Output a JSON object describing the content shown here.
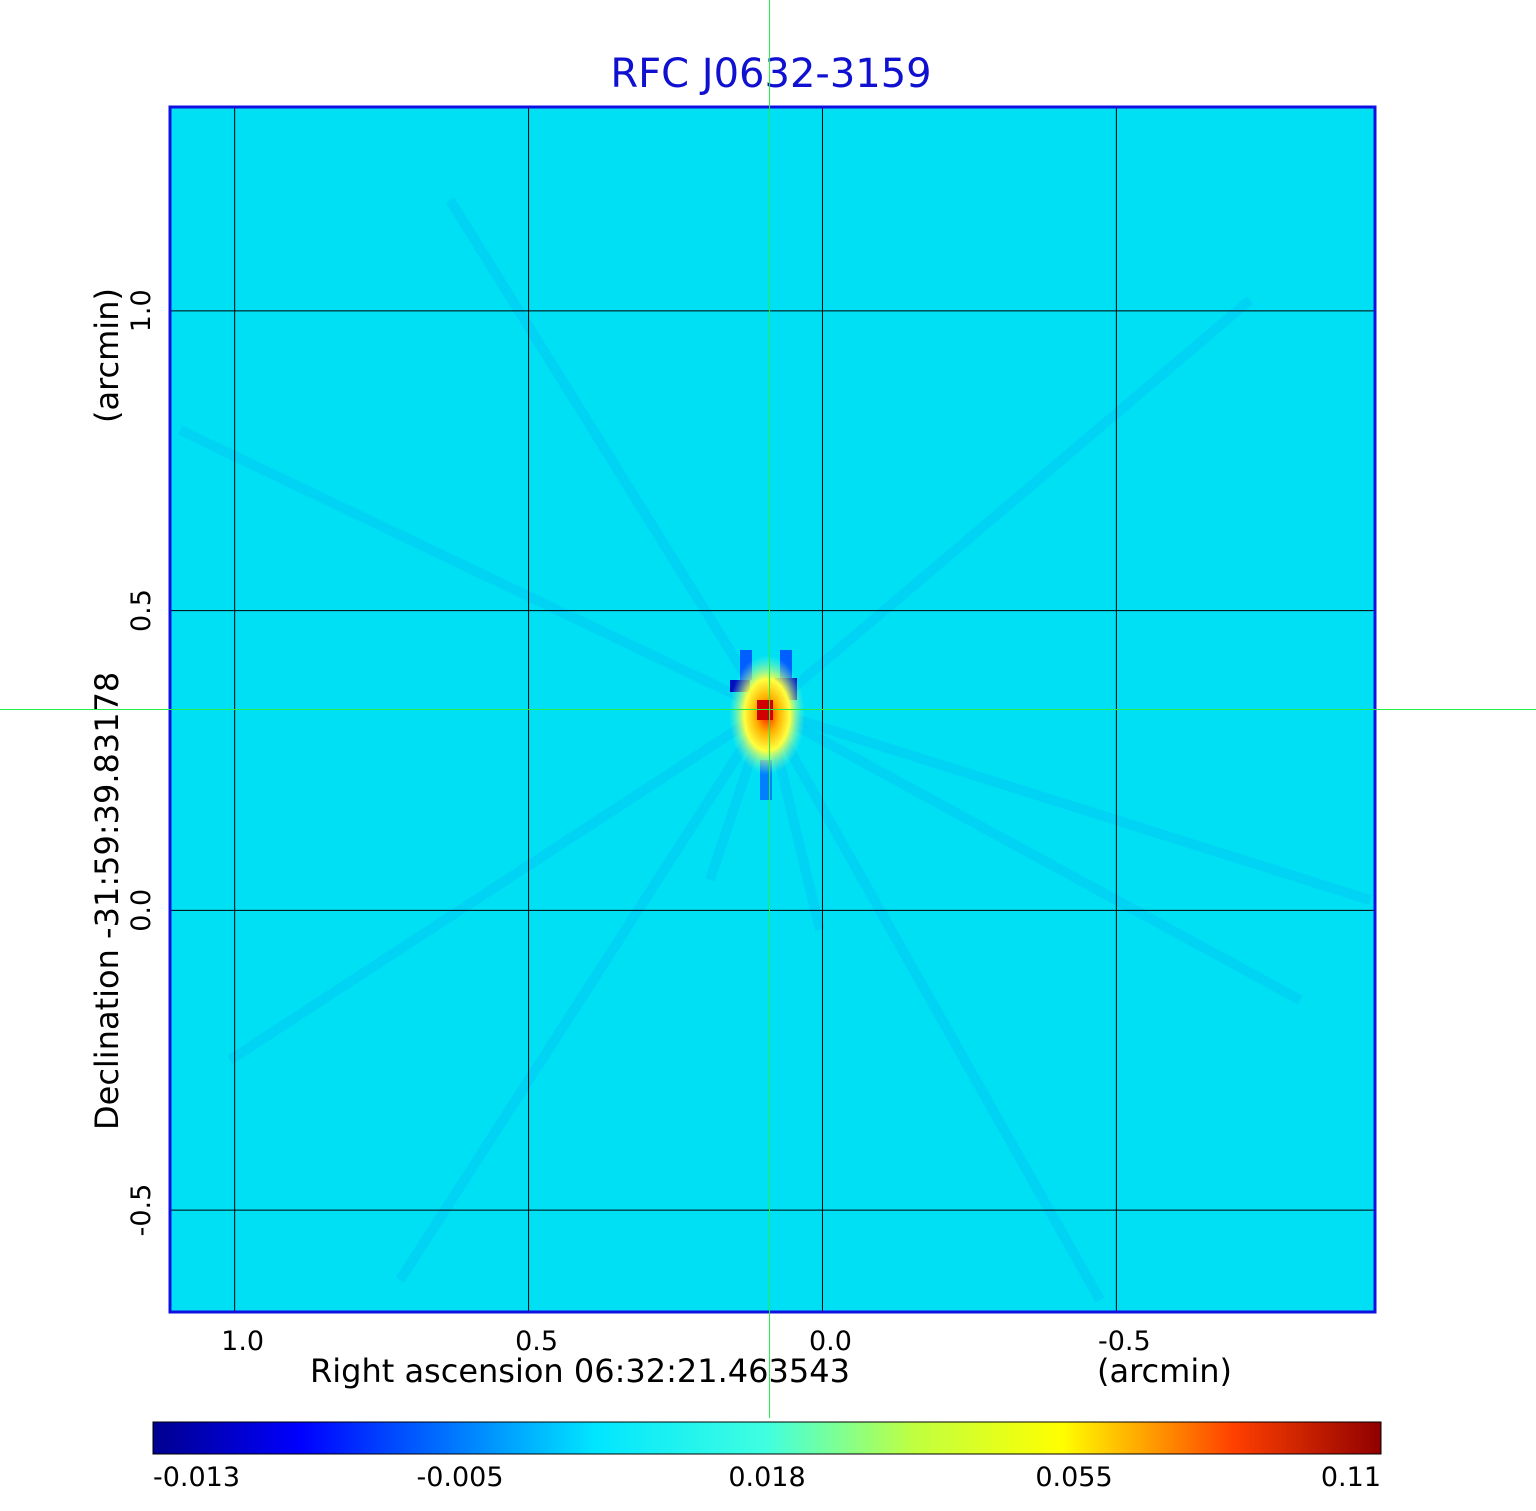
{
  "chart_data": {
    "type": "heatmap",
    "title": "RFC J0632-3159",
    "xlabel": "Right ascension  06:32:21.463543",
    "xunit": "(arcmin)",
    "ylabel": "Declination  -31:59:39.83178",
    "yunit": "(arcmin)",
    "x_ticks": [
      "1.0",
      "0.5",
      "0.0",
      "-0.5"
    ],
    "x_tick_values": [
      1.0,
      0.5,
      0.0,
      -0.5
    ],
    "y_ticks": [
      "1.0",
      "0.5",
      "0.0",
      "-0.5"
    ],
    "y_tick_values": [
      1.0,
      0.5,
      0.0,
      -0.5
    ],
    "xlim": [
      1.11,
      -0.94
    ],
    "ylim": [
      -0.67,
      1.34
    ],
    "grid": true,
    "crosshair": {
      "x": 0.09,
      "y": 0.335
    },
    "peak": {
      "x": 0.09,
      "y": 0.335
    },
    "colorbar": {
      "ticks": [
        "-0.013",
        "-0.005",
        "0.018",
        "0.055",
        "0.11"
      ],
      "colormap": "jet"
    },
    "colors": {
      "background_field": "#00e0f5",
      "frame": "#1010e0",
      "grid": "#000000",
      "crosshair": "#22ee44",
      "title": "#1010d0"
    }
  }
}
